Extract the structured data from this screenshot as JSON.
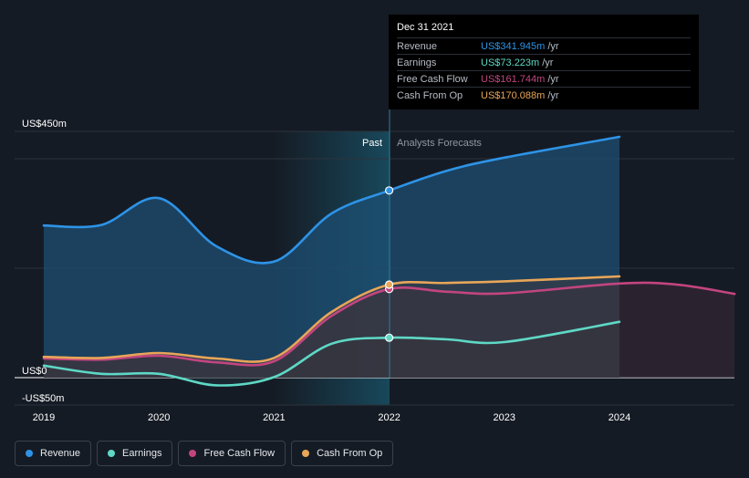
{
  "chart_data": {
    "type": "area",
    "x_ticks": [
      "2019",
      "2020",
      "2021",
      "2022",
      "2023",
      "2024"
    ],
    "y_labels": [
      "US$450m",
      "US$0",
      "-US$50m"
    ],
    "y_range": [
      -50,
      450
    ],
    "past_label": "Past",
    "forecast_label": "Analysts Forecasts",
    "series": [
      {
        "name": "Revenue",
        "color": "#2e93e6",
        "points": [
          [
            2019.0,
            278
          ],
          [
            2019.5,
            279
          ],
          [
            2020.0,
            328
          ],
          [
            2020.5,
            240
          ],
          [
            2021.0,
            212
          ],
          [
            2021.5,
            300
          ],
          [
            2022.0,
            342
          ],
          [
            2022.5,
            378
          ],
          [
            2023.0,
            402
          ],
          [
            2024.0,
            440
          ]
        ]
      },
      {
        "name": "Earnings",
        "color": "#5ed8c5",
        "points": [
          [
            2019.0,
            22
          ],
          [
            2019.5,
            7
          ],
          [
            2020.0,
            7
          ],
          [
            2020.5,
            -14
          ],
          [
            2021.0,
            1
          ],
          [
            2021.5,
            62
          ],
          [
            2022.0,
            73
          ],
          [
            2022.5,
            70
          ],
          [
            2023.0,
            65
          ],
          [
            2024.0,
            102
          ]
        ]
      },
      {
        "name": "Free Cash Flow",
        "color": "#c2457f",
        "points": [
          [
            2019.0,
            35
          ],
          [
            2019.5,
            33
          ],
          [
            2020.0,
            40
          ],
          [
            2020.5,
            28
          ],
          [
            2021.0,
            30
          ],
          [
            2021.5,
            113
          ],
          [
            2022.0,
            162
          ],
          [
            2022.5,
            157
          ],
          [
            2023.0,
            154
          ],
          [
            2024.0,
            172
          ],
          [
            2024.5,
            170
          ],
          [
            2025.0,
            153
          ]
        ]
      },
      {
        "name": "Cash From Op",
        "color": "#e8a658",
        "points": [
          [
            2019.0,
            38
          ],
          [
            2019.5,
            36
          ],
          [
            2020.0,
            45
          ],
          [
            2020.5,
            35
          ],
          [
            2021.0,
            36
          ],
          [
            2021.5,
            120
          ],
          [
            2022.0,
            170
          ],
          [
            2022.5,
            173
          ],
          [
            2023.0,
            176
          ],
          [
            2024.0,
            185
          ]
        ]
      }
    ]
  },
  "tooltip": {
    "date": "Dec 31 2021",
    "rows": [
      {
        "label": "Revenue",
        "value": "US$341.945m",
        "unit": "/yr",
        "color": "#2e93e6"
      },
      {
        "label": "Earnings",
        "value": "US$73.223m",
        "unit": "/yr",
        "color": "#5ed8c5"
      },
      {
        "label": "Free Cash Flow",
        "value": "US$161.744m",
        "unit": "/yr",
        "color": "#c2457f"
      },
      {
        "label": "Cash From Op",
        "value": "US$170.088m",
        "unit": "/yr",
        "color": "#e8a658"
      }
    ]
  },
  "legend": [
    {
      "label": "Revenue",
      "color": "#2e93e6"
    },
    {
      "label": "Earnings",
      "color": "#5ed8c5"
    },
    {
      "label": "Free Cash Flow",
      "color": "#c2457f"
    },
    {
      "label": "Cash From Op",
      "color": "#e8a658"
    }
  ]
}
